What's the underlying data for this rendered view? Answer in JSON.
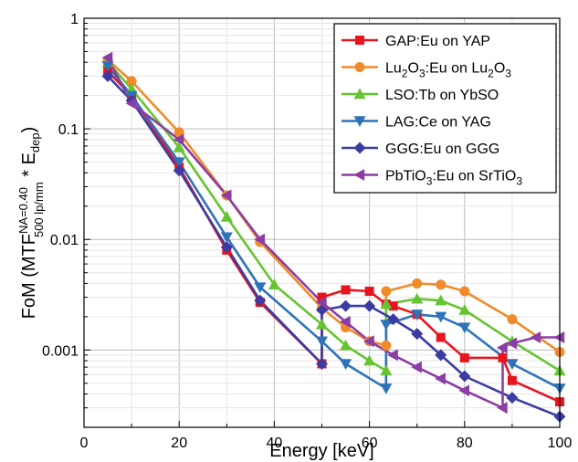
{
  "chart_data": {
    "type": "line",
    "title": "",
    "xlabel": "Energy [keV]",
    "ylabel_parts": [
      "FoM (MTF",
      "NA=0.40",
      "500 lp/mm",
      " * E",
      "dep",
      ")"
    ],
    "x_scale": "linear",
    "y_scale": "log",
    "xlim": [
      0,
      100
    ],
    "ylim": [
      0.0002,
      1
    ],
    "x_ticks": [
      0,
      20,
      40,
      60,
      80,
      100
    ],
    "y_ticks": [
      {
        "value": 1,
        "label": "1"
      },
      {
        "value": 0.1,
        "label": "0.1"
      },
      {
        "value": 0.01,
        "label": "0.01"
      },
      {
        "value": 0.001,
        "label": "0.001"
      }
    ],
    "grid": true,
    "legend_position": "top-right",
    "series": [
      {
        "name_parts": [
          {
            "t": "GAP:Eu on YAP"
          }
        ],
        "color": "#e8141e",
        "marker": "square",
        "points": [
          [
            5,
            0.33
          ],
          [
            10,
            0.2
          ],
          [
            20,
            0.045
          ],
          [
            30,
            0.008
          ],
          [
            37,
            0.0027
          ],
          [
            50,
            0.00075
          ],
          [
            50,
            0.003
          ],
          [
            55,
            0.0035
          ],
          [
            60,
            0.0034
          ],
          [
            63.5,
            0.0026
          ],
          [
            65,
            0.0025
          ],
          [
            70,
            0.0021
          ],
          [
            75,
            0.0013
          ],
          [
            80,
            0.00085
          ],
          [
            88,
            0.00085
          ],
          [
            90,
            0.00053
          ],
          [
            100,
            0.00034
          ]
        ]
      },
      {
        "name_parts": [
          {
            "t": "Lu"
          },
          {
            "t": "2",
            "sub": true
          },
          {
            "t": "O"
          },
          {
            "t": "3",
            "sub": true
          },
          {
            "t": ":Eu on Lu"
          },
          {
            "t": "2",
            "sub": true
          },
          {
            "t": "O"
          },
          {
            "t": "3",
            "sub": true
          }
        ],
        "color": "#f08a2a",
        "marker": "circle",
        "points": [
          [
            5,
            0.42
          ],
          [
            10,
            0.27
          ],
          [
            20,
            0.093
          ],
          [
            30,
            0.025
          ],
          [
            37,
            0.0095
          ],
          [
            50,
            0.0024
          ],
          [
            55,
            0.0016
          ],
          [
            60,
            0.0012
          ],
          [
            63.5,
            0.0011
          ],
          [
            63.5,
            0.0034
          ],
          [
            70,
            0.004
          ],
          [
            75,
            0.0039
          ],
          [
            80,
            0.0034
          ],
          [
            90,
            0.0019
          ],
          [
            100,
            0.00096
          ]
        ]
      },
      {
        "name_parts": [
          {
            "t": "LSO:Tb on YbSO"
          }
        ],
        "color": "#66c431",
        "marker": "triangle-up",
        "points": [
          [
            5,
            0.4
          ],
          [
            10,
            0.23
          ],
          [
            20,
            0.068
          ],
          [
            30,
            0.016
          ],
          [
            40,
            0.0039
          ],
          [
            50,
            0.0017
          ],
          [
            55,
            0.0011
          ],
          [
            60,
            0.0008
          ],
          [
            63.5,
            0.00065
          ],
          [
            63.5,
            0.0026
          ],
          [
            70,
            0.0029
          ],
          [
            75,
            0.0028
          ],
          [
            80,
            0.0023
          ],
          [
            90,
            0.0012
          ],
          [
            100,
            0.00065
          ]
        ]
      },
      {
        "name_parts": [
          {
            "t": "LAG:Ce on YAG"
          }
        ],
        "color": "#2e73ba",
        "marker": "triangle-down",
        "points": [
          [
            5,
            0.37
          ],
          [
            10,
            0.2
          ],
          [
            20,
            0.05
          ],
          [
            30,
            0.0105
          ],
          [
            37,
            0.0037
          ],
          [
            50,
            0.0012
          ],
          [
            55,
            0.00075
          ],
          [
            63.5,
            0.00045
          ],
          [
            63.5,
            0.0017
          ],
          [
            70,
            0.0021
          ],
          [
            75,
            0.002
          ],
          [
            80,
            0.0016
          ],
          [
            90,
            0.00075
          ],
          [
            100,
            0.00045
          ]
        ]
      },
      {
        "name_parts": [
          {
            "t": "GGG:Eu on GGG"
          }
        ],
        "color": "#3b3ba3",
        "marker": "diamond",
        "points": [
          [
            5,
            0.3
          ],
          [
            10,
            0.18
          ],
          [
            20,
            0.042
          ],
          [
            30,
            0.0085
          ],
          [
            37,
            0.0028
          ],
          [
            50,
            0.00075
          ],
          [
            50,
            0.0023
          ],
          [
            55,
            0.0025
          ],
          [
            60,
            0.0025
          ],
          [
            65,
            0.0019
          ],
          [
            70,
            0.0014
          ],
          [
            75,
            0.0009
          ],
          [
            80,
            0.00058
          ],
          [
            90,
            0.00037
          ],
          [
            100,
            0.00025
          ]
        ]
      },
      {
        "name_parts": [
          {
            "t": "PbTiO"
          },
          {
            "t": "3",
            "sub": true
          },
          {
            "t": ":Eu on SrTiO"
          },
          {
            "t": "3",
            "sub": true
          }
        ],
        "color": "#8a3da5",
        "marker": "triangle-left",
        "points": [
          [
            5,
            0.44
          ],
          [
            10,
            0.17
          ],
          [
            20,
            0.08
          ],
          [
            30,
            0.025
          ],
          [
            37,
            0.01
          ],
          [
            50,
            0.0027
          ],
          [
            55,
            0.0018
          ],
          [
            60,
            0.0012
          ],
          [
            65,
            0.0009
          ],
          [
            70,
            0.0007
          ],
          [
            75,
            0.00055
          ],
          [
            80,
            0.00043
          ],
          [
            88,
            0.0003
          ],
          [
            88,
            0.00105
          ],
          [
            90,
            0.00115
          ],
          [
            95,
            0.0013
          ],
          [
            100,
            0.0013
          ]
        ]
      }
    ]
  }
}
